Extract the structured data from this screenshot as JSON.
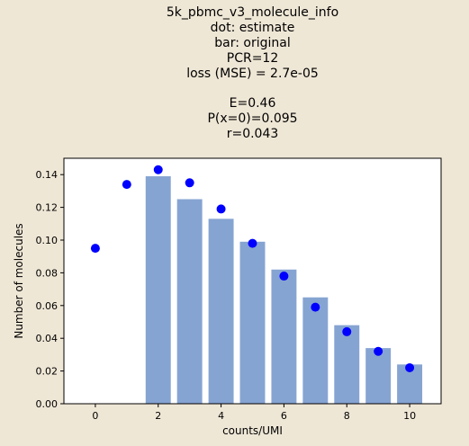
{
  "chart_data": {
    "type": "bar",
    "title_lines": [
      "5k_pbmc_v3_molecule_info",
      "dot: estimate",
      "bar: original",
      "PCR=12",
      "loss (MSE) = 2.7e-05",
      "",
      "E=0.46",
      "P(x=0)=0.095",
      "r=0.043"
    ],
    "xlabel": "counts/UMI",
    "ylabel": "Number of molecules",
    "xlim": [
      -1,
      11
    ],
    "ylim": [
      0,
      0.15
    ],
    "x_ticks": [
      0,
      2,
      4,
      6,
      8,
      10
    ],
    "y_ticks": [
      0.0,
      0.02,
      0.04,
      0.06,
      0.08,
      0.1,
      0.12,
      0.14
    ],
    "series": [
      {
        "name": "original",
        "kind": "bar",
        "color": "#86a4d2",
        "x": [
          2,
          3,
          4,
          5,
          6,
          7,
          8,
          9,
          10
        ],
        "values": [
          0.139,
          0.125,
          0.113,
          0.099,
          0.082,
          0.065,
          0.048,
          0.034,
          0.024
        ]
      },
      {
        "name": "estimate",
        "kind": "scatter",
        "color": "#0000ff",
        "x": [
          0,
          1,
          2,
          3,
          4,
          5,
          6,
          7,
          8,
          9,
          10
        ],
        "values": [
          0.095,
          0.134,
          0.143,
          0.135,
          0.119,
          0.098,
          0.078,
          0.059,
          0.044,
          0.032,
          0.022
        ]
      }
    ],
    "grid": false,
    "legend": false
  }
}
